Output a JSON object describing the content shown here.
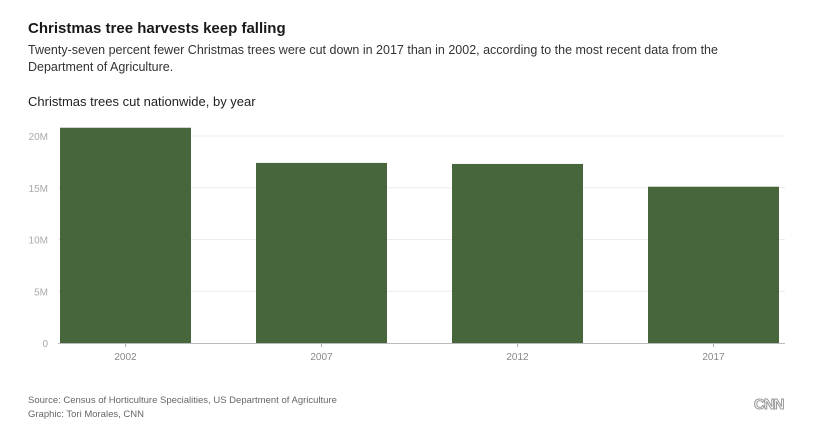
{
  "header": {
    "title": "Christmas tree harvests keep falling",
    "subtitle": "Twenty-seven percent fewer Christmas trees were cut down in 2017 than in 2002, according to the most recent data from the Department of Agriculture."
  },
  "chart_data": {
    "type": "bar",
    "title": "Christmas trees cut nationwide, by year",
    "categories": [
      "2002",
      "2007",
      "2012",
      "2017"
    ],
    "values": [
      20.8,
      17.4,
      17.3,
      15.1
    ],
    "unit": "millions",
    "ylim": [
      0,
      20
    ],
    "yticks": [
      0,
      5,
      10,
      15,
      20
    ],
    "ytick_labels": [
      "0",
      "5M",
      "10M",
      "15M",
      "20M"
    ],
    "grid": true,
    "bar_color": "#47663c"
  },
  "footer": {
    "source": "Source: Census of Horticulture Specialities, US Department of Agriculture",
    "credit": "Graphic: Tori Morales, CNN",
    "logo": "CNN"
  }
}
